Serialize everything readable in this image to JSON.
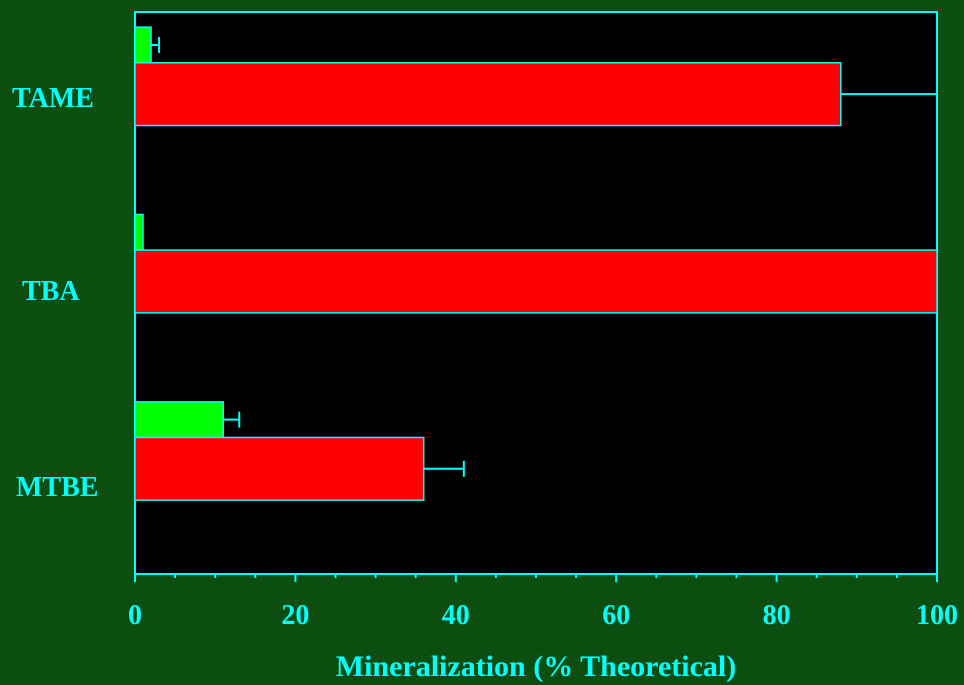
{
  "chart_data": {
    "type": "bar",
    "orientation": "horizontal",
    "title": "",
    "xlabel": "Mineralization (% Theoretical)",
    "ylabel": "",
    "xlim": [
      0,
      100
    ],
    "xticks": [
      0,
      20,
      40,
      60,
      80,
      100
    ],
    "xtick_labels": [
      "0",
      "20",
      "40",
      "60",
      "80",
      "100"
    ],
    "categories": [
      "TAME",
      "TBA",
      "MTBE"
    ],
    "series": [
      {
        "color": "#00ff00",
        "values": [
          2,
          1,
          11
        ],
        "errors": [
          1,
          null,
          2
        ]
      },
      {
        "color": "#ff0000",
        "values": [
          88,
          100,
          36
        ],
        "errors": [
          12,
          null,
          5
        ]
      }
    ],
    "grid": false,
    "legend": "none",
    "colors": {
      "background": "#0c4d10",
      "plot_background": "#000000",
      "axis": "#00ffff",
      "text": "#00ffff"
    }
  }
}
